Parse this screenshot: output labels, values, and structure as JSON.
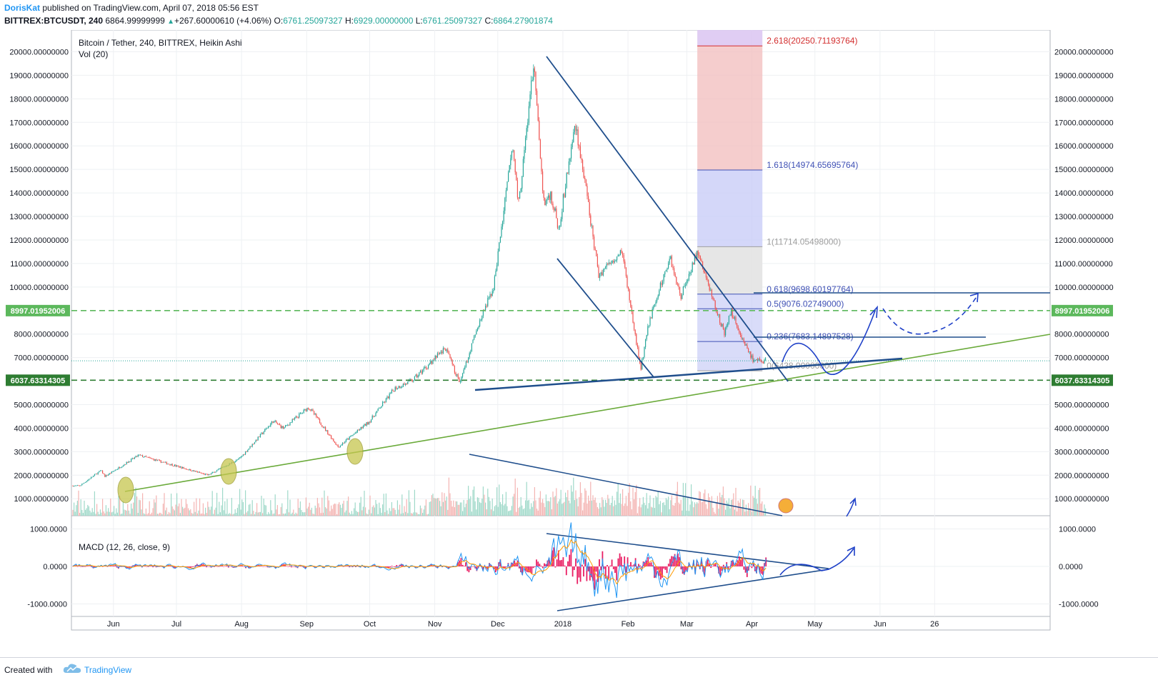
{
  "header": {
    "author": "DorisKat",
    "published_text": "published on TradingView.com, April 07, 2018 05:56 EST",
    "symbol": "BITTREX:BTCUSDT, 240",
    "last": "6864.99999999",
    "change": "+267.60000610 (+4.06%)",
    "o_label": "O:",
    "o_value": "6761.25097327",
    "h_label": "H:",
    "h_value": "6929.00000000",
    "l_label": "L:",
    "l_value": "6761.25097327",
    "c_label": "C:",
    "c_value": "6864.27901874"
  },
  "footer": {
    "created": "Created with",
    "brand": "TradingView"
  },
  "colors": {
    "up": "#26a69a",
    "down": "#ef5350",
    "trend": "#1f4e8c",
    "green_line": "#6aaa3a",
    "fib_red": "#f3c1c1",
    "fib_blue": "#c9cdf7",
    "fib_purple": "#ddc8f2",
    "fib_gray": "#e3e3e3",
    "hline_light": "#5cb85c",
    "hline_dark": "#2e7d32",
    "macd_hist": "#e91e63"
  },
  "chart_data": [
    {
      "type": "candlestick",
      "title": "Bitcoin / Tether, 240, BITTREX, Heikin Ashi",
      "subtitle": "Vol (20)",
      "x_tick_labels": [
        "Jun",
        "Jul",
        "Aug",
        "Sep",
        "Oct",
        "Nov",
        "Dec",
        "2018",
        "Feb",
        "Mar",
        "Apr",
        "May",
        "Jun",
        "26"
      ],
      "y_tick_labels": [
        "20000.00000000",
        "19000.00000000",
        "18000.00000000",
        "17000.00000000",
        "16000.00000000",
        "15000.00000000",
        "14000.00000000",
        "13000.00000000",
        "12000.00000000",
        "11000.00000000",
        "10000.00000000",
        "8000.00000000",
        "7000.00000000",
        "5000.00000000",
        "4000.00000000",
        "3000.00000000",
        "2000.00000000",
        "1000.00000000"
      ],
      "ylim": [
        0,
        20800
      ],
      "price_path": [
        {
          "x": "2017-05-15",
          "y": 1550
        },
        {
          "x": "2017-05-25",
          "y": 2200
        },
        {
          "x": "2017-05-27",
          "y": 1950
        },
        {
          "x": "2017-06-12",
          "y": 2850
        },
        {
          "x": "2017-07-15",
          "y": 2000
        },
        {
          "x": "2017-07-30",
          "y": 2700
        },
        {
          "x": "2017-08-15",
          "y": 4300
        },
        {
          "x": "2017-08-20",
          "y": 4000
        },
        {
          "x": "2017-09-01",
          "y": 4900
        },
        {
          "x": "2017-09-15",
          "y": 3200
        },
        {
          "x": "2017-09-30",
          "y": 4300
        },
        {
          "x": "2017-10-12",
          "y": 5700
        },
        {
          "x": "2017-10-20",
          "y": 6000
        },
        {
          "x": "2017-11-05",
          "y": 7400
        },
        {
          "x": "2017-11-12",
          "y": 5900
        },
        {
          "x": "2017-11-20",
          "y": 8200
        },
        {
          "x": "2017-11-28",
          "y": 10000
        },
        {
          "x": "2017-12-07",
          "y": 16000
        },
        {
          "x": "2017-12-10",
          "y": 13500
        },
        {
          "x": "2017-12-17",
          "y": 19500
        },
        {
          "x": "2017-12-22",
          "y": 13500
        },
        {
          "x": "2017-12-25",
          "y": 14000
        },
        {
          "x": "2017-12-29",
          "y": 12500
        },
        {
          "x": "2018-01-06",
          "y": 17000
        },
        {
          "x": "2018-01-12",
          "y": 13500
        },
        {
          "x": "2018-01-17",
          "y": 10500
        },
        {
          "x": "2018-01-28",
          "y": 11600
        },
        {
          "x": "2018-02-06",
          "y": 6500
        },
        {
          "x": "2018-02-10",
          "y": 8500
        },
        {
          "x": "2018-02-20",
          "y": 11300
        },
        {
          "x": "2018-02-25",
          "y": 9600
        },
        {
          "x": "2018-03-05",
          "y": 11500
        },
        {
          "x": "2018-03-18",
          "y": 8000
        },
        {
          "x": "2018-03-21",
          "y": 9000
        },
        {
          "x": "2018-03-26",
          "y": 7900
        },
        {
          "x": "2018-04-01",
          "y": 6800
        },
        {
          "x": "2018-04-07",
          "y": 6900
        }
      ],
      "horizontal_lines": [
        {
          "label": "8997.01952006",
          "y": 8997.01952006,
          "style": "dashed",
          "color": "#5cb85c"
        },
        {
          "label": "6037.63314305",
          "y": 6037.63314305,
          "style": "dashed",
          "color": "#2e7d32"
        }
      ],
      "last_price_line": 6864.28,
      "fib_extension": {
        "x_from": "2018-03-05",
        "x_to": "2018-04-05",
        "levels": [
          {
            "label": "2.618(20250.71193764)",
            "y": 20250.71193764,
            "color": "#d32f2f"
          },
          {
            "label": "1.618(14974.65695764)",
            "y": 14974.65695764,
            "color": "#3f51b5"
          },
          {
            "label": "1(11714.05498000)",
            "y": 11714.05498,
            "color": "#9e9e9e"
          },
          {
            "label": "0.618(9698.60197764)",
            "y": 9698.60197764,
            "color": "#3f51b5"
          },
          {
            "label": "0.5(9076.02749000)",
            "y": 9076.02749,
            "color": "#3f51b5"
          },
          {
            "label": "0.236(7683.14897528)",
            "y": 7683.14897528,
            "color": "#3f51b5"
          },
          {
            "label": "0(6438.00000000)",
            "y": 6438.0,
            "color": "#9e9e9e"
          }
        ]
      }
    },
    {
      "type": "macd",
      "title": "MACD (12, 26, close, 9)",
      "y_tick_labels": [
        "1000.0000",
        "0.0000",
        "-1000.0000"
      ],
      "ylim": [
        -1350,
        1200
      ]
    }
  ]
}
